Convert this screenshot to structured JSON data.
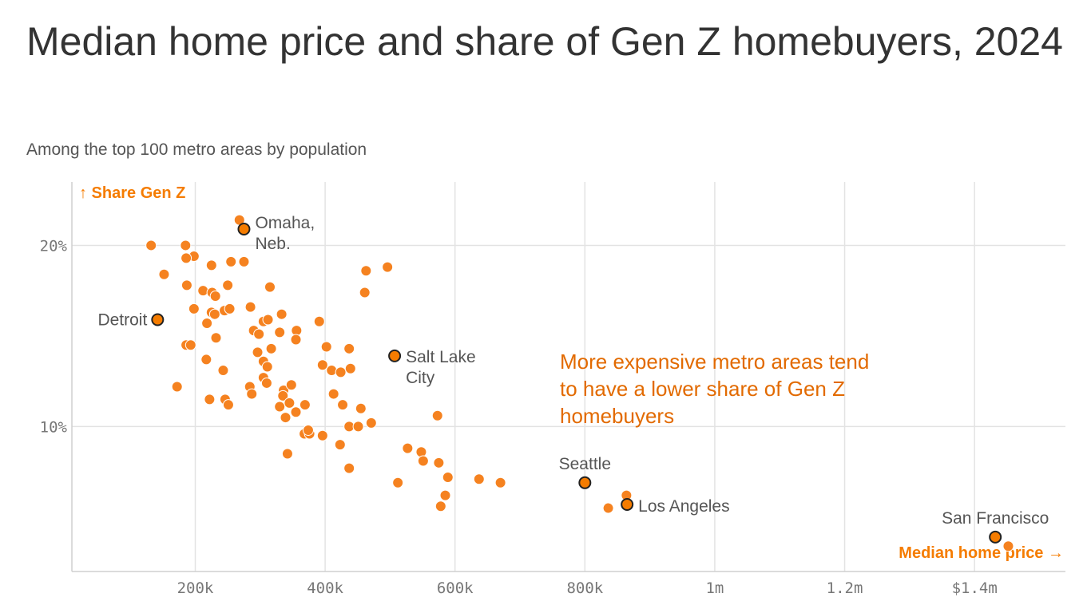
{
  "title": "Median home price and share of Gen Z homebuyers, 2024",
  "subtitle": "Among the top 100 metro areas by population",
  "annotation": [
    "More expensive metro areas tend",
    "to have a lower share of Gen Z",
    "homebuyers"
  ],
  "colors": {
    "point": "#f58220",
    "highlight_point": "#f57c00",
    "highlight_stroke": "#222222",
    "annotation": "#e26a00",
    "axis_title": "#f57c00",
    "grid": "#e3e3e3"
  },
  "chart_data": {
    "type": "scatter",
    "title": "Median home price and share of Gen Z homebuyers, 2024",
    "subtitle": "Among the top 100 metro areas by population",
    "xlabel": "Median home price →",
    "ylabel": "↑ Share Gen Z",
    "xlim": [
      10000,
      1540000
    ],
    "ylim": [
      2.0,
      23.5
    ],
    "x_ticks": [
      200000,
      400000,
      600000,
      800000,
      1000000,
      1200000,
      1400000
    ],
    "x_tick_labels": [
      "200k",
      "400k",
      "600k",
      "800k",
      "1m",
      "1.2m",
      "$1.4m"
    ],
    "y_ticks": [
      10,
      20
    ],
    "y_tick_labels": [
      "10%",
      "20%"
    ],
    "grid": true,
    "points": [
      {
        "x": 132000,
        "y": 20.0
      },
      {
        "x": 185000,
        "y": 20.0
      },
      {
        "x": 198000,
        "y": 19.4
      },
      {
        "x": 186000,
        "y": 19.3
      },
      {
        "x": 225000,
        "y": 18.9
      },
      {
        "x": 255000,
        "y": 19.1
      },
      {
        "x": 275000,
        "y": 19.1
      },
      {
        "x": 152000,
        "y": 18.4
      },
      {
        "x": 187000,
        "y": 17.8
      },
      {
        "x": 212000,
        "y": 17.5
      },
      {
        "x": 226000,
        "y": 17.4
      },
      {
        "x": 231000,
        "y": 17.2
      },
      {
        "x": 250000,
        "y": 17.8
      },
      {
        "x": 315000,
        "y": 17.7
      },
      {
        "x": 198000,
        "y": 16.5
      },
      {
        "x": 225000,
        "y": 16.3
      },
      {
        "x": 230000,
        "y": 16.2
      },
      {
        "x": 245000,
        "y": 16.4
      },
      {
        "x": 253000,
        "y": 16.5
      },
      {
        "x": 285000,
        "y": 16.6
      },
      {
        "x": 218000,
        "y": 15.7
      },
      {
        "x": 305000,
        "y": 15.8
      },
      {
        "x": 312000,
        "y": 15.9
      },
      {
        "x": 333000,
        "y": 16.2
      },
      {
        "x": 290000,
        "y": 15.3
      },
      {
        "x": 298000,
        "y": 15.1
      },
      {
        "x": 330000,
        "y": 15.2
      },
      {
        "x": 356000,
        "y": 15.3
      },
      {
        "x": 355000,
        "y": 14.8
      },
      {
        "x": 391000,
        "y": 15.8
      },
      {
        "x": 186000,
        "y": 14.5
      },
      {
        "x": 193000,
        "y": 14.5
      },
      {
        "x": 232000,
        "y": 14.9
      },
      {
        "x": 296000,
        "y": 14.1
      },
      {
        "x": 317000,
        "y": 14.3
      },
      {
        "x": 402000,
        "y": 14.4
      },
      {
        "x": 437000,
        "y": 14.3
      },
      {
        "x": 217000,
        "y": 13.7
      },
      {
        "x": 305000,
        "y": 13.6
      },
      {
        "x": 311000,
        "y": 13.3
      },
      {
        "x": 243000,
        "y": 13.1
      },
      {
        "x": 396000,
        "y": 13.4
      },
      {
        "x": 410000,
        "y": 13.1
      },
      {
        "x": 424000,
        "y": 13.0
      },
      {
        "x": 439000,
        "y": 13.2
      },
      {
        "x": 172000,
        "y": 12.2
      },
      {
        "x": 284000,
        "y": 12.2
      },
      {
        "x": 305000,
        "y": 12.7
      },
      {
        "x": 310000,
        "y": 12.4
      },
      {
        "x": 336000,
        "y": 12.0
      },
      {
        "x": 348000,
        "y": 12.3
      },
      {
        "x": 222000,
        "y": 11.5
      },
      {
        "x": 246000,
        "y": 11.5
      },
      {
        "x": 251000,
        "y": 11.2
      },
      {
        "x": 287000,
        "y": 11.8
      },
      {
        "x": 335000,
        "y": 11.7
      },
      {
        "x": 345000,
        "y": 11.3
      },
      {
        "x": 330000,
        "y": 11.1
      },
      {
        "x": 369000,
        "y": 11.2
      },
      {
        "x": 413000,
        "y": 11.8
      },
      {
        "x": 427000,
        "y": 11.2
      },
      {
        "x": 455000,
        "y": 11.0
      },
      {
        "x": 573000,
        "y": 10.6
      },
      {
        "x": 339000,
        "y": 10.5
      },
      {
        "x": 355000,
        "y": 10.8
      },
      {
        "x": 437000,
        "y": 10.0
      },
      {
        "x": 451000,
        "y": 10.0
      },
      {
        "x": 471000,
        "y": 10.2
      },
      {
        "x": 368000,
        "y": 9.6
      },
      {
        "x": 376000,
        "y": 9.6
      },
      {
        "x": 374000,
        "y": 9.8
      },
      {
        "x": 396000,
        "y": 9.5
      },
      {
        "x": 423000,
        "y": 9.0
      },
      {
        "x": 527000,
        "y": 8.8
      },
      {
        "x": 548000,
        "y": 8.6
      },
      {
        "x": 551000,
        "y": 8.1
      },
      {
        "x": 575000,
        "y": 8.0
      },
      {
        "x": 342000,
        "y": 8.5
      },
      {
        "x": 437000,
        "y": 7.7
      },
      {
        "x": 589000,
        "y": 7.2
      },
      {
        "x": 637000,
        "y": 7.1
      },
      {
        "x": 670000,
        "y": 6.9
      },
      {
        "x": 512000,
        "y": 6.9
      },
      {
        "x": 585000,
        "y": 6.2
      },
      {
        "x": 578000,
        "y": 5.6
      },
      {
        "x": 864000,
        "y": 6.2
      },
      {
        "x": 836000,
        "y": 5.5
      },
      {
        "x": 1452000,
        "y": 3.4
      },
      {
        "x": 268000,
        "y": 21.4
      },
      {
        "x": 463000,
        "y": 18.6
      },
      {
        "x": 496000,
        "y": 18.8
      },
      {
        "x": 461000,
        "y": 17.4
      }
    ],
    "highlighted": [
      {
        "label": "Omaha,\nNeb.",
        "x": 275000,
        "y": 20.9
      },
      {
        "label": "Detroit",
        "x": 142000,
        "y": 15.9
      },
      {
        "label": "Salt Lake\nCity",
        "x": 507000,
        "y": 13.9
      },
      {
        "label": "Seattle",
        "x": 800000,
        "y": 6.9
      },
      {
        "label": "Los Angeles",
        "x": 865000,
        "y": 5.7
      },
      {
        "label": "San Francisco",
        "x": 1432000,
        "y": 3.9
      }
    ]
  }
}
